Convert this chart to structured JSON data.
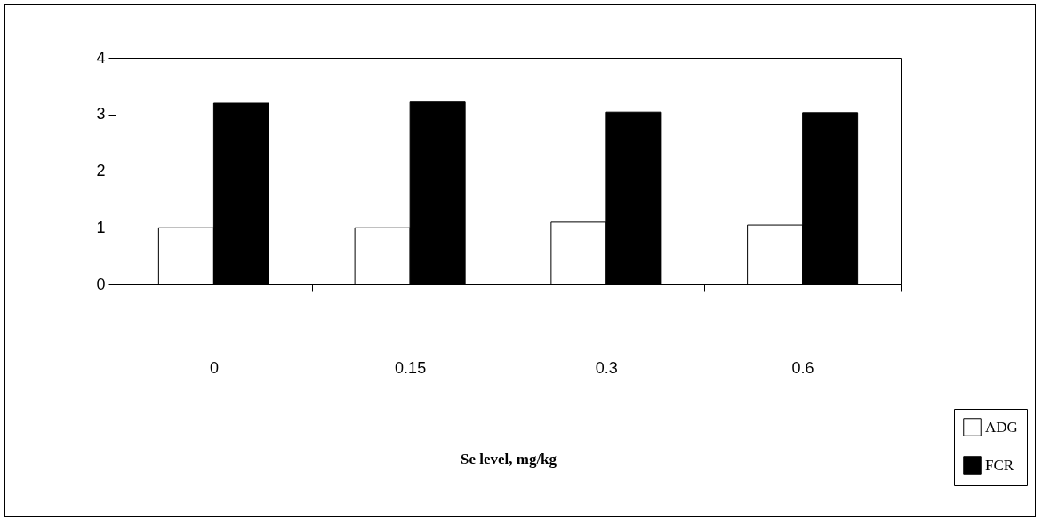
{
  "chart_data": {
    "type": "bar",
    "xlabel": "Se level, mg/kg",
    "categories": [
      "0",
      "0.15",
      "0.3",
      "0.6"
    ],
    "series": [
      {
        "name": "ADG",
        "color": "#ffffff",
        "values": [
          1.0,
          1.0,
          1.1,
          1.05
        ]
      },
      {
        "name": "FCR",
        "color": "#000000",
        "values": [
          3.2,
          3.22,
          3.04,
          3.03
        ]
      }
    ],
    "ylim": [
      0,
      4
    ],
    "yticks": [
      0,
      1,
      2,
      3,
      4
    ],
    "grid": false,
    "legend": "bottom right"
  }
}
